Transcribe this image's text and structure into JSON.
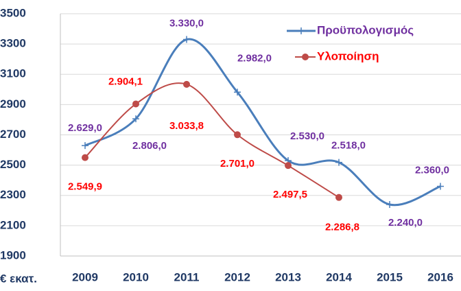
{
  "chart_data": {
    "type": "line",
    "y_label": "€ εκατ.",
    "categories": [
      "2009",
      "2010",
      "2011",
      "2012",
      "2013",
      "2014",
      "2015",
      "2016"
    ],
    "series": [
      {
        "name": "Προϋπολογισμός",
        "color": "#4a7ebb",
        "label_color": "#7030a0",
        "values": [
          2629.0,
          2806.0,
          3330.0,
          2982.0,
          2530.0,
          2518.0,
          2240.0,
          2360.0
        ],
        "value_labels": [
          "2.629,0",
          "2.806,0",
          "3.330,0",
          "2.982,0",
          "2.530,0",
          "2.518,0",
          "2.240,0",
          "2.360,0"
        ]
      },
      {
        "name": "Υλοποίηση",
        "color": "#be4b48",
        "label_color": "#ff0000",
        "values": [
          2549.9,
          2904.1,
          3033.8,
          2701.0,
          2497.5,
          2286.8,
          null,
          null
        ],
        "value_labels": [
          "2.549,9",
          "2.904,1",
          "3.033,8",
          "2.701,0",
          "2.497,5",
          "2.286,8",
          null,
          null
        ]
      }
    ],
    "ylim": [
      1900,
      3500
    ],
    "yticks": [
      1900,
      2100,
      2300,
      2500,
      2700,
      2900,
      3100,
      3300,
      3500
    ],
    "grid": true
  }
}
